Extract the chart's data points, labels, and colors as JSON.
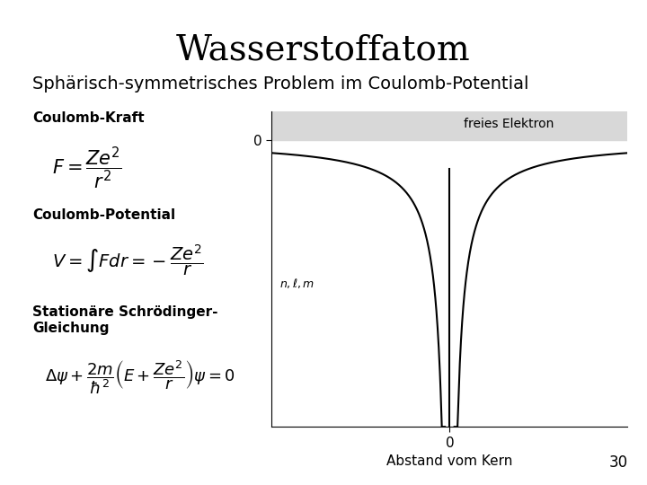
{
  "title": "Wasserstoffatom",
  "subtitle": "Sphärisch-symmetrisches Problem im Coulomb-Potential",
  "label_coulomb_kraft": "Coulomb-Kraft",
  "formula_kraft": "F = \\frac{Ze^2}{r^2}",
  "label_coulomb_potential": "Coulomb-Potential",
  "formula_potential": "V = \\int F dr = -\\frac{Ze^2}{r}",
  "label_schrodinger": "Stationäre Schrödinger-\nGleichung",
  "formula_schrodinger": "\\Delta\\psi + \\frac{2m}{\\hbar^2}\\left(E + \\frac{Ze^2}{r}\\right)\\psi = 0",
  "graph_xlabel": "Abstand vom Kern",
  "graph_ylabel": "",
  "graph_zero_label": "0",
  "freies_elektron_label": "freies Elektron",
  "page_number": "30",
  "background_color": "#ffffff",
  "plot_bg_color": "#ffffff",
  "shade_color": "#d8d8d8",
  "curve_color": "#000000",
  "title_fontsize": 28,
  "subtitle_fontsize": 14,
  "label_fontsize": 11,
  "formula_fontsize": 13,
  "graph_label_fontsize": 11
}
